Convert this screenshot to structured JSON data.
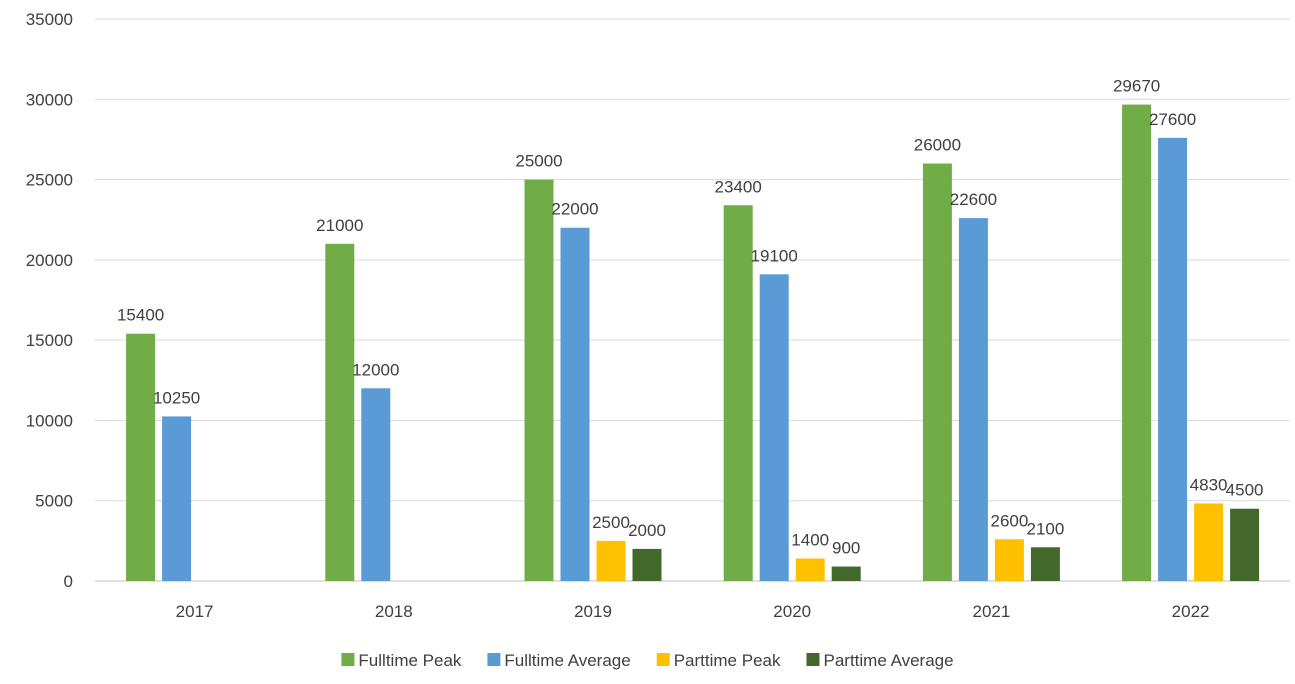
{
  "chart_data": {
    "type": "bar",
    "title": "",
    "xlabel": "",
    "ylabel": "",
    "categories": [
      "2017",
      "2018",
      "2019",
      "2020",
      "2021",
      "2022"
    ],
    "ylim": [
      0,
      35000
    ],
    "yticks": [
      0,
      5000,
      10000,
      15000,
      20000,
      25000,
      30000,
      35000
    ],
    "grid": true,
    "legend_position": "bottom",
    "series": [
      {
        "name": "Fulltime Peak",
        "color": "#70ad47",
        "values": [
          15400,
          21000,
          25000,
          23400,
          26000,
          29670
        ]
      },
      {
        "name": "Fulltime Average",
        "color": "#5b9bd5",
        "values": [
          10250,
          12000,
          22000,
          19100,
          22600,
          27600
        ]
      },
      {
        "name": "Parttime Peak",
        "color": "#ffc000",
        "values": [
          null,
          null,
          2500,
          1400,
          2600,
          4830
        ]
      },
      {
        "name": "Parttime Average",
        "color": "#43682b",
        "values": [
          null,
          null,
          2000,
          900,
          2100,
          4500
        ]
      }
    ]
  }
}
